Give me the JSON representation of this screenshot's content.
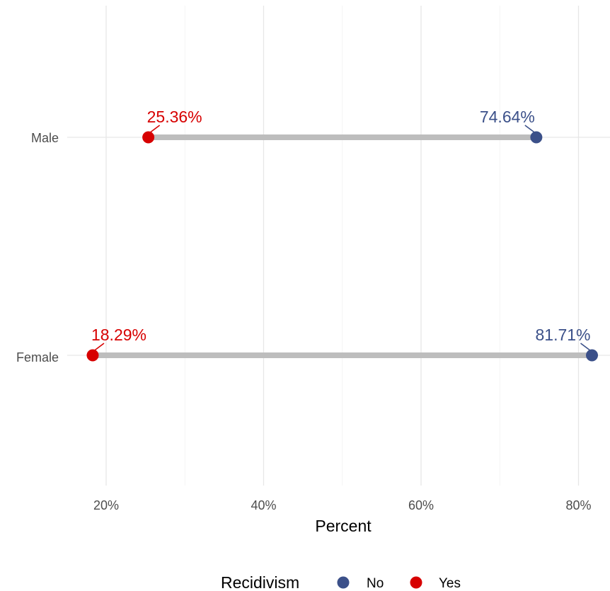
{
  "chart_data": {
    "type": "dumbbell",
    "categories": [
      "Male",
      "Female"
    ],
    "series": [
      {
        "name": "No",
        "values": [
          74.64,
          81.71
        ],
        "color": "#3b5089"
      },
      {
        "name": "Yes",
        "values": [
          25.36,
          18.29
        ],
        "color": "#d70000"
      }
    ],
    "data_labels": {
      "No": [
        "74.64%",
        "81.71%"
      ],
      "Yes": [
        "25.36%",
        "18.29%"
      ]
    },
    "xlabel": "Percent",
    "ylabel": "",
    "xlim": [
      15,
      82
    ],
    "x_ticks": [
      20,
      40,
      60,
      80
    ],
    "x_tick_labels": [
      "20%",
      "40%",
      "60%",
      "80%"
    ],
    "grid": true,
    "segment_color": "#bdbdbd",
    "legend": {
      "title": "Recidivism",
      "placement": "bottom",
      "entries": [
        "No",
        "Yes"
      ]
    }
  }
}
